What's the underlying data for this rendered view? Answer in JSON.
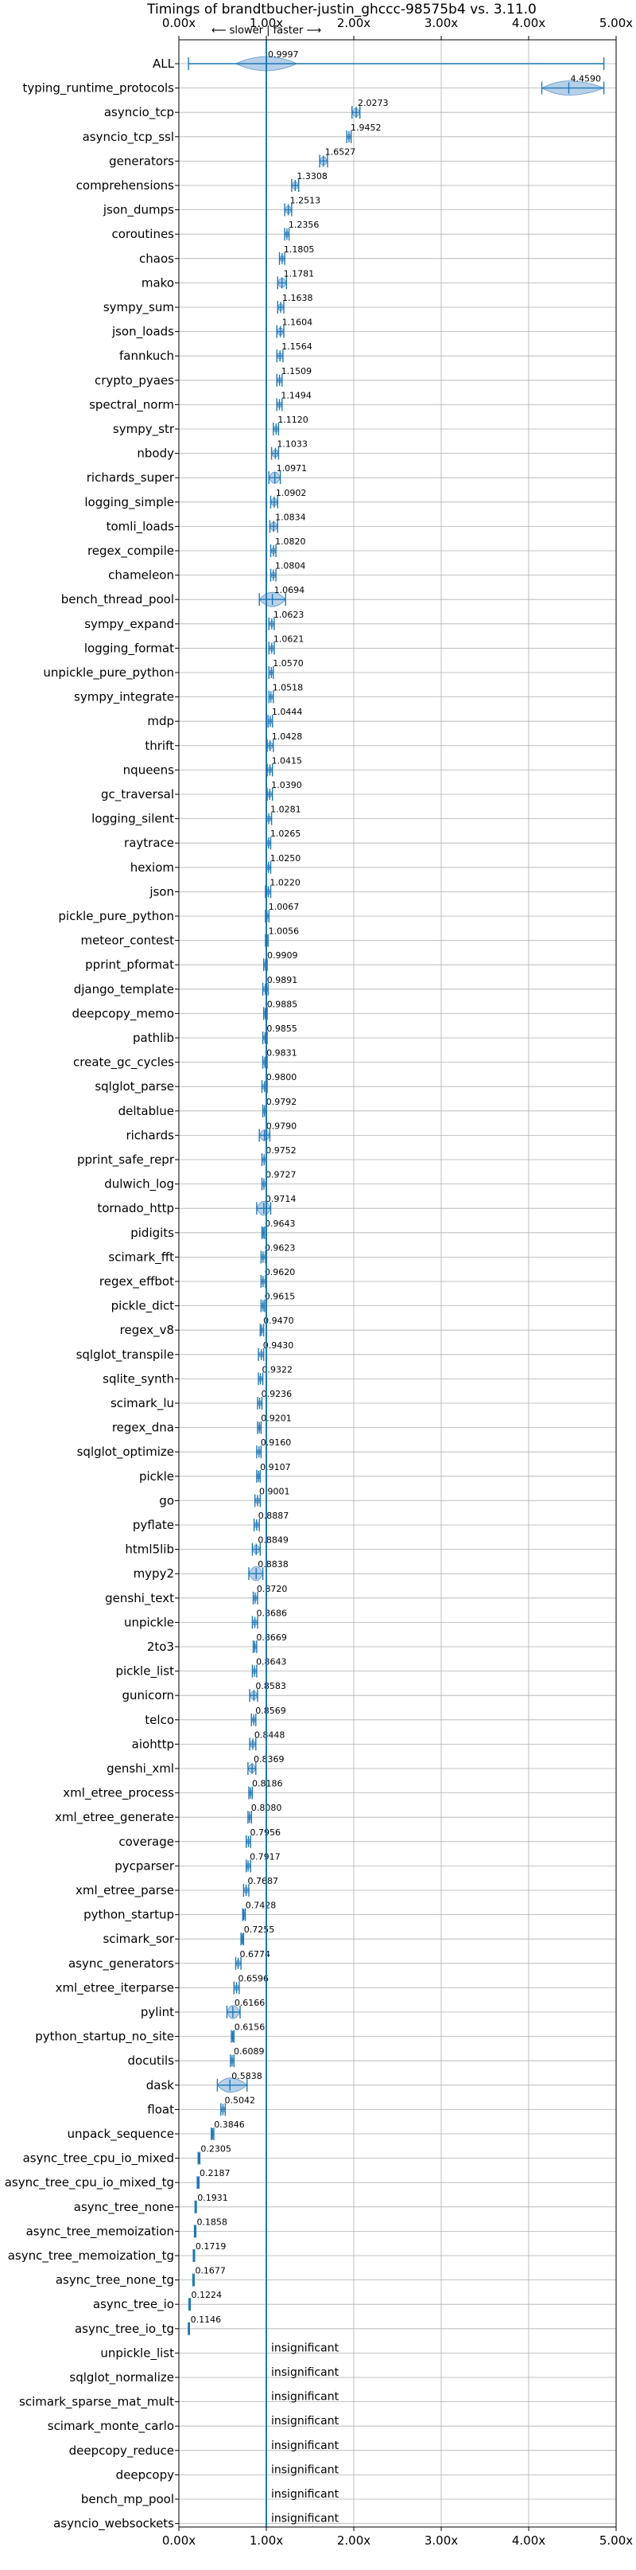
{
  "chart_data": {
    "type": "violin",
    "title": "Timings of brandtbucher-justin_ghccc-98575b4 vs. 3.11.0",
    "direction_note": "⟵ slower | faster ⟶",
    "xlabel": "",
    "ylabel": "",
    "xlim": [
      0,
      5
    ],
    "xticks": [
      0,
      1,
      2,
      3,
      4,
      5
    ],
    "xtick_labels": [
      "0.00x",
      "1.00x",
      "2.00x",
      "3.00x",
      "4.00x",
      "5.00x"
    ],
    "reference_line": 1.0,
    "grid": true,
    "insignificant_label": "insignificant",
    "benchmarks": [
      {
        "name": "ALL",
        "value": 0.9997,
        "label": "0.9997",
        "lo": 0.11,
        "hi": 4.86,
        "spread": 0.35
      },
      {
        "name": "typing_runtime_protocols",
        "value": 4.459,
        "label": "4.4590",
        "lo": 4.15,
        "hi": 4.86,
        "spread": 0.35
      },
      {
        "name": "asyncio_tcp",
        "value": 2.0273,
        "label": "2.0273",
        "lo": 1.98,
        "hi": 2.07,
        "spread": 0.06
      },
      {
        "name": "asyncio_tcp_ssl",
        "value": 1.9452,
        "label": "1.9452",
        "lo": 1.92,
        "hi": 1.97,
        "spread": 0.03
      },
      {
        "name": "generators",
        "value": 1.6527,
        "label": "1.6527",
        "lo": 1.61,
        "hi": 1.7,
        "spread": 0.05
      },
      {
        "name": "comprehensions",
        "value": 1.3308,
        "label": "1.3308",
        "lo": 1.29,
        "hi": 1.37,
        "spread": 0.05
      },
      {
        "name": "json_dumps",
        "value": 1.2513,
        "label": "1.2513",
        "lo": 1.21,
        "hi": 1.29,
        "spread": 0.05
      },
      {
        "name": "coroutines",
        "value": 1.2356,
        "label": "1.2356",
        "lo": 1.21,
        "hi": 1.26,
        "spread": 0.03
      },
      {
        "name": "chaos",
        "value": 1.1805,
        "label": "1.1805",
        "lo": 1.15,
        "hi": 1.21,
        "spread": 0.04
      },
      {
        "name": "mako",
        "value": 1.1781,
        "label": "1.1781",
        "lo": 1.13,
        "hi": 1.23,
        "spread": 0.05
      },
      {
        "name": "sympy_sum",
        "value": 1.1638,
        "label": "1.1638",
        "lo": 1.13,
        "hi": 1.2,
        "spread": 0.04
      },
      {
        "name": "json_loads",
        "value": 1.1604,
        "label": "1.1604",
        "lo": 1.12,
        "hi": 1.2,
        "spread": 0.05
      },
      {
        "name": "fannkuch",
        "value": 1.1564,
        "label": "1.1564",
        "lo": 1.12,
        "hi": 1.19,
        "spread": 0.04
      },
      {
        "name": "crypto_pyaes",
        "value": 1.1509,
        "label": "1.1509",
        "lo": 1.12,
        "hi": 1.18,
        "spread": 0.04
      },
      {
        "name": "spectral_norm",
        "value": 1.1494,
        "label": "1.1494",
        "lo": 1.12,
        "hi": 1.18,
        "spread": 0.03
      },
      {
        "name": "sympy_str",
        "value": 1.112,
        "label": "1.1120",
        "lo": 1.08,
        "hi": 1.14,
        "spread": 0.04
      },
      {
        "name": "nbody",
        "value": 1.1033,
        "label": "1.1033",
        "lo": 1.06,
        "hi": 1.14,
        "spread": 0.05
      },
      {
        "name": "richards_super",
        "value": 1.0971,
        "label": "1.0971",
        "lo": 1.03,
        "hi": 1.16,
        "spread": 0.05
      },
      {
        "name": "logging_simple",
        "value": 1.0902,
        "label": "1.0902",
        "lo": 1.05,
        "hi": 1.13,
        "spread": 0.05
      },
      {
        "name": "tomli_loads",
        "value": 1.0834,
        "label": "1.0834",
        "lo": 1.04,
        "hi": 1.13,
        "spread": 0.05
      },
      {
        "name": "regex_compile",
        "value": 1.082,
        "label": "1.0820",
        "lo": 1.05,
        "hi": 1.11,
        "spread": 0.04
      },
      {
        "name": "chameleon",
        "value": 1.0804,
        "label": "1.0804",
        "lo": 1.05,
        "hi": 1.11,
        "spread": 0.04
      },
      {
        "name": "bench_thread_pool",
        "value": 1.0694,
        "label": "1.0694",
        "lo": 0.92,
        "hi": 1.22,
        "spread": 0.11
      },
      {
        "name": "sympy_expand",
        "value": 1.0623,
        "label": "1.0623",
        "lo": 1.03,
        "hi": 1.09,
        "spread": 0.04
      },
      {
        "name": "logging_format",
        "value": 1.0621,
        "label": "1.0621",
        "lo": 1.03,
        "hi": 1.09,
        "spread": 0.04
      },
      {
        "name": "unpickle_pure_python",
        "value": 1.057,
        "label": "1.0570",
        "lo": 1.03,
        "hi": 1.08,
        "spread": 0.03
      },
      {
        "name": "sympy_integrate",
        "value": 1.0518,
        "label": "1.0518",
        "lo": 1.03,
        "hi": 1.08,
        "spread": 0.03
      },
      {
        "name": "mdp",
        "value": 1.0444,
        "label": "1.0444",
        "lo": 1.02,
        "hi": 1.07,
        "spread": 0.03
      },
      {
        "name": "thrift",
        "value": 1.0428,
        "label": "1.0428",
        "lo": 1.01,
        "hi": 1.08,
        "spread": 0.04
      },
      {
        "name": "nqueens",
        "value": 1.0415,
        "label": "1.0415",
        "lo": 1.01,
        "hi": 1.07,
        "spread": 0.04
      },
      {
        "name": "gc_traversal",
        "value": 1.039,
        "label": "1.0390",
        "lo": 1.01,
        "hi": 1.07,
        "spread": 0.04
      },
      {
        "name": "logging_silent",
        "value": 1.0281,
        "label": "1.0281",
        "lo": 1.0,
        "hi": 1.06,
        "spread": 0.04
      },
      {
        "name": "raytrace",
        "value": 1.0265,
        "label": "1.0265",
        "lo": 1.0,
        "hi": 1.05,
        "spread": 0.03
      },
      {
        "name": "hexiom",
        "value": 1.025,
        "label": "1.0250",
        "lo": 1.0,
        "hi": 1.05,
        "spread": 0.03
      },
      {
        "name": "json",
        "value": 1.022,
        "label": "1.0220",
        "lo": 0.99,
        "hi": 1.05,
        "spread": 0.04
      },
      {
        "name": "pickle_pure_python",
        "value": 1.0067,
        "label": "1.0067",
        "lo": 0.99,
        "hi": 1.03,
        "spread": 0.03
      },
      {
        "name": "meteor_contest",
        "value": 1.0056,
        "label": "1.0056",
        "lo": 0.99,
        "hi": 1.02,
        "spread": 0.02
      },
      {
        "name": "pprint_pformat",
        "value": 0.9909,
        "label": "0.9909",
        "lo": 0.97,
        "hi": 1.01,
        "spread": 0.03
      },
      {
        "name": "django_template",
        "value": 0.9891,
        "label": "0.9891",
        "lo": 0.96,
        "hi": 1.02,
        "spread": 0.04
      },
      {
        "name": "deepcopy_memo",
        "value": 0.9885,
        "label": "0.9885",
        "lo": 0.97,
        "hi": 1.01,
        "spread": 0.03
      },
      {
        "name": "pathlib",
        "value": 0.9855,
        "label": "0.9855",
        "lo": 0.96,
        "hi": 1.01,
        "spread": 0.03
      },
      {
        "name": "create_gc_cycles",
        "value": 0.9831,
        "label": "0.9831",
        "lo": 0.96,
        "hi": 1.01,
        "spread": 0.03
      },
      {
        "name": "sqlglot_parse",
        "value": 0.98,
        "label": "0.9800",
        "lo": 0.95,
        "hi": 1.01,
        "spread": 0.04
      },
      {
        "name": "deltablue",
        "value": 0.9792,
        "label": "0.9792",
        "lo": 0.96,
        "hi": 1.0,
        "spread": 0.03
      },
      {
        "name": "richards",
        "value": 0.979,
        "label": "0.9790",
        "lo": 0.92,
        "hi": 1.04,
        "spread": 0.05
      },
      {
        "name": "pprint_safe_repr",
        "value": 0.9752,
        "label": "0.9752",
        "lo": 0.95,
        "hi": 1.0,
        "spread": 0.03
      },
      {
        "name": "dulwich_log",
        "value": 0.9727,
        "label": "0.9727",
        "lo": 0.95,
        "hi": 1.0,
        "spread": 0.03
      },
      {
        "name": "tornado_http",
        "value": 0.9714,
        "label": "0.9714",
        "lo": 0.89,
        "hi": 1.05,
        "spread": 0.06
      },
      {
        "name": "pidigits",
        "value": 0.9643,
        "label": "0.9643",
        "lo": 0.95,
        "hi": 0.98,
        "spread": 0.02
      },
      {
        "name": "scimark_fft",
        "value": 0.9623,
        "label": "0.9623",
        "lo": 0.94,
        "hi": 0.99,
        "spread": 0.03
      },
      {
        "name": "regex_effbot",
        "value": 0.962,
        "label": "0.9620",
        "lo": 0.94,
        "hi": 0.99,
        "spread": 0.03
      },
      {
        "name": "pickle_dict",
        "value": 0.9615,
        "label": "0.9615",
        "lo": 0.94,
        "hi": 0.98,
        "spread": 0.03
      },
      {
        "name": "regex_v8",
        "value": 0.947,
        "label": "0.9470",
        "lo": 0.93,
        "hi": 0.97,
        "spread": 0.03
      },
      {
        "name": "sqlglot_transpile",
        "value": 0.943,
        "label": "0.9430",
        "lo": 0.91,
        "hi": 0.97,
        "spread": 0.04
      },
      {
        "name": "sqlite_synth",
        "value": 0.9322,
        "label": "0.9322",
        "lo": 0.91,
        "hi": 0.96,
        "spread": 0.03
      },
      {
        "name": "scimark_lu",
        "value": 0.9236,
        "label": "0.9236",
        "lo": 0.9,
        "hi": 0.95,
        "spread": 0.03
      },
      {
        "name": "regex_dna",
        "value": 0.9201,
        "label": "0.9201",
        "lo": 0.9,
        "hi": 0.94,
        "spread": 0.03
      },
      {
        "name": "sqlglot_optimize",
        "value": 0.916,
        "label": "0.9160",
        "lo": 0.89,
        "hi": 0.94,
        "spread": 0.03
      },
      {
        "name": "pickle",
        "value": 0.9107,
        "label": "0.9107",
        "lo": 0.89,
        "hi": 0.93,
        "spread": 0.03
      },
      {
        "name": "go",
        "value": 0.9001,
        "label": "0.9001",
        "lo": 0.87,
        "hi": 0.93,
        "spread": 0.04
      },
      {
        "name": "pyflate",
        "value": 0.8887,
        "label": "0.8887",
        "lo": 0.86,
        "hi": 0.92,
        "spread": 0.04
      },
      {
        "name": "html5lib",
        "value": 0.8849,
        "label": "0.8849",
        "lo": 0.84,
        "hi": 0.93,
        "spread": 0.05
      },
      {
        "name": "mypy2",
        "value": 0.8838,
        "label": "0.8838",
        "lo": 0.8,
        "hi": 0.96,
        "spread": 0.06
      },
      {
        "name": "genshi_text",
        "value": 0.872,
        "label": "0.8720",
        "lo": 0.85,
        "hi": 0.9,
        "spread": 0.03
      },
      {
        "name": "unpickle",
        "value": 0.8686,
        "label": "0.8686",
        "lo": 0.84,
        "hi": 0.9,
        "spread": 0.04
      },
      {
        "name": "2to3",
        "value": 0.8669,
        "label": "0.8669",
        "lo": 0.85,
        "hi": 0.89,
        "spread": 0.03
      },
      {
        "name": "pickle_list",
        "value": 0.8643,
        "label": "0.8643",
        "lo": 0.84,
        "hi": 0.89,
        "spread": 0.03
      },
      {
        "name": "gunicorn",
        "value": 0.8583,
        "label": "0.8583",
        "lo": 0.81,
        "hi": 0.9,
        "spread": 0.05
      },
      {
        "name": "telco",
        "value": 0.8569,
        "label": "0.8569",
        "lo": 0.83,
        "hi": 0.88,
        "spread": 0.03
      },
      {
        "name": "aiohttp",
        "value": 0.8448,
        "label": "0.8448",
        "lo": 0.81,
        "hi": 0.88,
        "spread": 0.04
      },
      {
        "name": "genshi_xml",
        "value": 0.8369,
        "label": "0.8369",
        "lo": 0.79,
        "hi": 0.88,
        "spread": 0.05
      },
      {
        "name": "xml_etree_process",
        "value": 0.8186,
        "label": "0.8186",
        "lo": 0.8,
        "hi": 0.84,
        "spread": 0.03
      },
      {
        "name": "xml_etree_generate",
        "value": 0.808,
        "label": "0.8080",
        "lo": 0.79,
        "hi": 0.83,
        "spread": 0.02
      },
      {
        "name": "coverage",
        "value": 0.7956,
        "label": "0.7956",
        "lo": 0.77,
        "hi": 0.82,
        "spread": 0.03
      },
      {
        "name": "pycparser",
        "value": 0.7917,
        "label": "0.7917",
        "lo": 0.77,
        "hi": 0.82,
        "spread": 0.03
      },
      {
        "name": "xml_etree_parse",
        "value": 0.7687,
        "label": "0.7687",
        "lo": 0.74,
        "hi": 0.8,
        "spread": 0.03
      },
      {
        "name": "python_startup",
        "value": 0.7428,
        "label": "0.7428",
        "lo": 0.73,
        "hi": 0.76,
        "spread": 0.02
      },
      {
        "name": "scimark_sor",
        "value": 0.7255,
        "label": "0.7255",
        "lo": 0.71,
        "hi": 0.74,
        "spread": 0.02
      },
      {
        "name": "async_generators",
        "value": 0.6774,
        "label": "0.6774",
        "lo": 0.65,
        "hi": 0.71,
        "spread": 0.03
      },
      {
        "name": "xml_etree_iterparse",
        "value": 0.6596,
        "label": "0.6596",
        "lo": 0.63,
        "hi": 0.69,
        "spread": 0.03
      },
      {
        "name": "pylint",
        "value": 0.6166,
        "label": "0.6166",
        "lo": 0.55,
        "hi": 0.7,
        "spread": 0.06
      },
      {
        "name": "python_startup_no_site",
        "value": 0.6156,
        "label": "0.6156",
        "lo": 0.6,
        "hi": 0.63,
        "spread": 0.02
      },
      {
        "name": "docutils",
        "value": 0.6089,
        "label": "0.6089",
        "lo": 0.59,
        "hi": 0.63,
        "spread": 0.02
      },
      {
        "name": "dask",
        "value": 0.5838,
        "label": "0.5838",
        "lo": 0.44,
        "hi": 0.78,
        "spread": 0.13
      },
      {
        "name": "float",
        "value": 0.5042,
        "label": "0.5042",
        "lo": 0.48,
        "hi": 0.53,
        "spread": 0.03
      },
      {
        "name": "unpack_sequence",
        "value": 0.3846,
        "label": "0.3846",
        "lo": 0.37,
        "hi": 0.4,
        "spread": 0.02
      },
      {
        "name": "async_tree_cpu_io_mixed",
        "value": 0.2305,
        "label": "0.2305",
        "lo": 0.22,
        "hi": 0.24,
        "spread": 0.015
      },
      {
        "name": "async_tree_cpu_io_mixed_tg",
        "value": 0.2187,
        "label": "0.2187",
        "lo": 0.21,
        "hi": 0.23,
        "spread": 0.015
      },
      {
        "name": "async_tree_none",
        "value": 0.1931,
        "label": "0.1931",
        "lo": 0.185,
        "hi": 0.2,
        "spread": 0.012
      },
      {
        "name": "async_tree_memoization",
        "value": 0.1858,
        "label": "0.1858",
        "lo": 0.178,
        "hi": 0.194,
        "spread": 0.012
      },
      {
        "name": "async_tree_memoization_tg",
        "value": 0.1719,
        "label": "0.1719",
        "lo": 0.165,
        "hi": 0.18,
        "spread": 0.012
      },
      {
        "name": "async_tree_none_tg",
        "value": 0.1677,
        "label": "0.1677",
        "lo": 0.16,
        "hi": 0.175,
        "spread": 0.012
      },
      {
        "name": "async_tree_io",
        "value": 0.1224,
        "label": "0.1224",
        "lo": 0.115,
        "hi": 0.13,
        "spread": 0.01
      },
      {
        "name": "async_tree_io_tg",
        "value": 0.1146,
        "label": "0.1146",
        "lo": 0.108,
        "hi": 0.121,
        "spread": 0.01
      }
    ],
    "insignificant": [
      "unpickle_list",
      "sqlglot_normalize",
      "scimark_sparse_mat_mult",
      "scimark_monte_carlo",
      "deepcopy_reduce",
      "deepcopy",
      "bench_mp_pool",
      "asyncio_websockets"
    ],
    "colors": {
      "violin_fill": "#a9c8e6",
      "violin_edge": "#5f96c8",
      "accent": "#1f77b4",
      "grid": "#b0b0b0"
    }
  }
}
